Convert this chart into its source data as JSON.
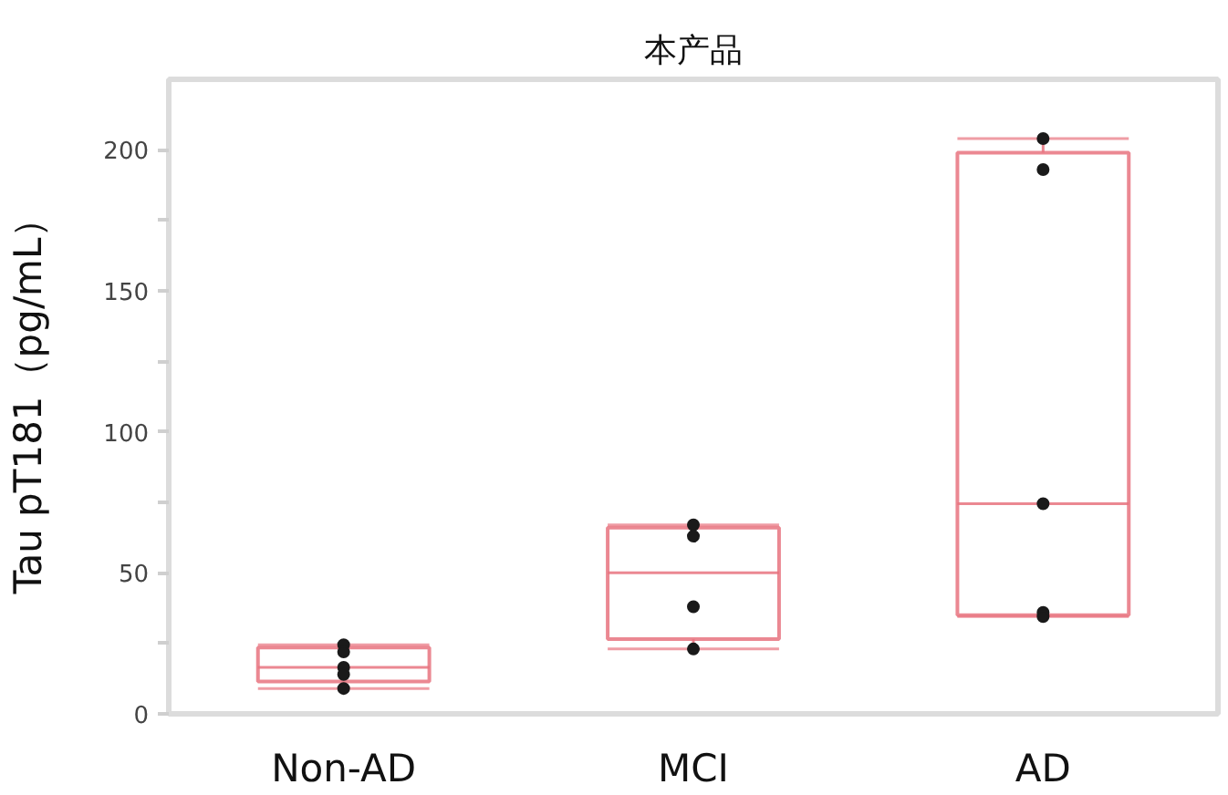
{
  "chart_data": {
    "type": "box",
    "title": "本产品",
    "ylabel": "Tau pT181（pg/mL）",
    "categories": [
      "Non-AD",
      "MCI",
      "AD"
    ],
    "ylim": [
      0,
      225
    ],
    "yticks": [
      0,
      {
        "value": 25,
        "label": null
      },
      50,
      {
        "value": 75,
        "label": null
      },
      100,
      {
        "value": 125,
        "label": null
      },
      150,
      {
        "value": 175,
        "label": null
      },
      200
    ],
    "grid": false,
    "marker": "circle",
    "color": "#e8737f",
    "boxes": [
      {
        "low": 9,
        "q1": 11.5,
        "median": 16.5,
        "q3": 23.5,
        "high": 24.5
      },
      {
        "low": 23,
        "q1": 26.5,
        "median": 50,
        "q3": 66,
        "high": 67
      },
      {
        "low": 34.5,
        "q1": 35,
        "median": 74.5,
        "q3": 199,
        "high": 204
      }
    ],
    "series": [
      {
        "type": "scatter",
        "color": "#1a1a1a",
        "x": [
          "Non-AD",
          "Non-AD",
          "Non-AD",
          "Non-AD",
          "Non-AD",
          "MCI",
          "MCI",
          "MCI",
          "MCI",
          "AD",
          "AD",
          "AD",
          "AD",
          "AD"
        ],
        "values": [
          24.5,
          22,
          16.5,
          14,
          9,
          67,
          63,
          38,
          23,
          204,
          193,
          74.5,
          36,
          34.5
        ]
      }
    ]
  }
}
